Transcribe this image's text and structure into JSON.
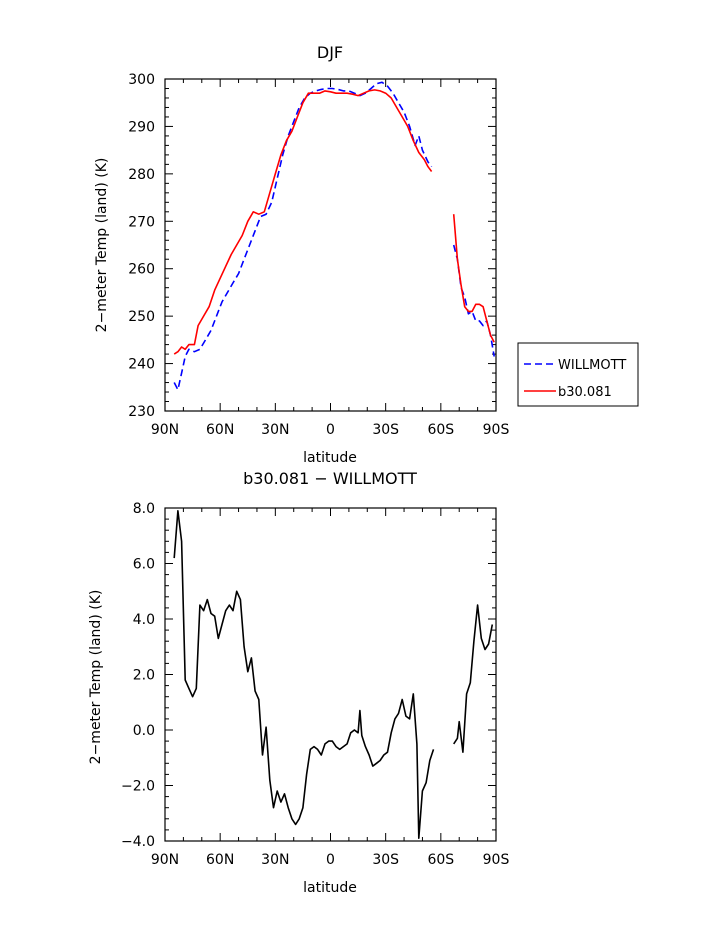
{
  "chart_data": [
    {
      "type": "line",
      "title": "DJF",
      "xlabel": "latitude",
      "ylabel": "2−meter Temp (land) (K)",
      "x_ticks": [
        "90N",
        "60N",
        "30N",
        "0",
        "30S",
        "60S",
        "90S"
      ],
      "y_ticks": [
        "230",
        "240",
        "250",
        "260",
        "270",
        "280",
        "290",
        "300"
      ],
      "xlim": [
        90,
        -90
      ],
      "ylim": [
        230,
        300
      ],
      "legend_position": "right-bottom-outside",
      "series": [
        {
          "name": "WILLMOTT",
          "color": "#0000ff",
          "dash": "dashed",
          "segments": [
            [
              [
                85,
                236
              ],
              [
                83,
                234.5
              ],
              [
                81,
                238
              ],
              [
                79,
                241.5
              ],
              [
                77,
                243
              ],
              [
                74,
                242.5
              ],
              [
                71,
                243
              ],
              [
                68,
                245
              ],
              [
                65,
                247
              ],
              [
                62,
                250
              ],
              [
                59,
                253
              ],
              [
                56,
                255
              ],
              [
                53,
                257
              ],
              [
                50,
                259
              ],
              [
                47,
                262
              ],
              [
                44,
                265
              ],
              [
                41,
                268
              ],
              [
                38,
                271
              ],
              [
                35,
                271.5
              ],
              [
                32,
                274
              ],
              [
                29,
                279
              ],
              [
                26,
                284
              ],
              [
                23,
                288
              ],
              [
                20,
                291
              ],
              [
                17,
                294
              ],
              [
                14,
                296
              ],
              [
                11,
                297
              ],
              [
                8,
                297.5
              ],
              [
                5,
                297.8
              ],
              [
                2,
                298
              ],
              [
                -1,
                298
              ],
              [
                -4,
                297.8
              ],
              [
                -7,
                297.5
              ],
              [
                -10,
                297.5
              ],
              [
                -13,
                297
              ],
              [
                -16,
                296.5
              ],
              [
                -19,
                297
              ],
              [
                -22,
                298
              ],
              [
                -25,
                299
              ],
              [
                -28,
                299.3
              ],
              [
                -31,
                298.5
              ],
              [
                -34,
                297
              ],
              [
                -37,
                295
              ],
              [
                -40,
                293
              ],
              [
                -43,
                290
              ],
              [
                -46,
                286
              ],
              [
                -48,
                288
              ],
              [
                -50,
                285
              ],
              [
                -53,
                282.5
              ],
              [
                -55,
                281.5
              ]
            ],
            [
              [
                -67,
                265
              ],
              [
                -69,
                262
              ],
              [
                -71,
                256
              ],
              [
                -73,
                254
              ],
              [
                -75,
                250.5
              ],
              [
                -77,
                251
              ],
              [
                -79,
                249
              ],
              [
                -81,
                249
              ],
              [
                -83,
                248
              ],
              [
                -85,
                249
              ],
              [
                -87,
                246
              ],
              [
                -89,
                241.5
              ]
            ]
          ]
        },
        {
          "name": "b30.081",
          "color": "#ff0000",
          "dash": "solid",
          "segments": [
            [
              [
                85,
                242
              ],
              [
                83,
                242.5
              ],
              [
                81,
                243.5
              ],
              [
                79,
                243
              ],
              [
                77,
                244
              ],
              [
                74,
                244
              ],
              [
                72,
                248
              ],
              [
                69,
                250
              ],
              [
                66,
                252
              ],
              [
                63,
                255.5
              ],
              [
                60,
                258
              ],
              [
                57,
                260.5
              ],
              [
                54,
                263
              ],
              [
                51,
                265
              ],
              [
                48,
                267
              ],
              [
                45,
                270
              ],
              [
                42,
                272
              ],
              [
                39,
                271.5
              ],
              [
                36,
                272
              ],
              [
                33,
                276
              ],
              [
                30,
                280
              ],
              [
                27,
                284
              ],
              [
                24,
                287
              ],
              [
                21,
                289
              ],
              [
                18,
                292
              ],
              [
                15,
                295
              ],
              [
                12,
                297
              ],
              [
                9,
                297
              ],
              [
                6,
                297
              ],
              [
                3,
                297.5
              ],
              [
                0,
                297.3
              ],
              [
                -3,
                297
              ],
              [
                -6,
                297
              ],
              [
                -9,
                297
              ],
              [
                -12,
                296.8
              ],
              [
                -15,
                296.5
              ],
              [
                -18,
                297
              ],
              [
                -21,
                297.5
              ],
              [
                -24,
                297.7
              ],
              [
                -27,
                297.5
              ],
              [
                -30,
                297
              ],
              [
                -33,
                296
              ],
              [
                -36,
                294
              ],
              [
                -39,
                292
              ],
              [
                -42,
                290
              ],
              [
                -45,
                287
              ],
              [
                -48,
                284.5
              ],
              [
                -51,
                283
              ],
              [
                -53,
                281.5
              ],
              [
                -55,
                280.5
              ]
            ],
            [
              [
                -67,
                271.5
              ],
              [
                -69,
                262
              ],
              [
                -71,
                256.5
              ],
              [
                -73,
                252
              ],
              [
                -75,
                251
              ],
              [
                -77,
                251
              ],
              [
                -79,
                252.5
              ],
              [
                -81,
                252.5
              ],
              [
                -83,
                252
              ],
              [
                -85,
                249
              ],
              [
                -87,
                246
              ],
              [
                -89,
                244.5
              ]
            ]
          ]
        }
      ]
    },
    {
      "type": "line",
      "title": "b30.081 − WILLMOTT",
      "xlabel": "latitude",
      "ylabel": "2−meter Temp (land) (K)",
      "x_ticks": [
        "90N",
        "60N",
        "30N",
        "0",
        "30S",
        "60S",
        "90S"
      ],
      "y_ticks": [
        "−4.0",
        "−2.0",
        "0.0",
        "2.0",
        "4.0",
        "6.0",
        "8.0"
      ],
      "xlim": [
        90,
        -90
      ],
      "ylim": [
        -4,
        8
      ],
      "series": [
        {
          "color": "#000000",
          "dash": "solid",
          "segments": [
            [
              [
                85,
                6.2
              ],
              [
                83,
                7.9
              ],
              [
                81,
                6.8
              ],
              [
                79,
                1.8
              ],
              [
                77,
                1.5
              ],
              [
                75,
                1.2
              ],
              [
                73,
                1.5
              ],
              [
                71,
                4.5
              ],
              [
                69,
                4.3
              ],
              [
                67,
                4.7
              ],
              [
                65,
                4.2
              ],
              [
                63,
                4.1
              ],
              [
                61,
                3.3
              ],
              [
                59,
                3.8
              ],
              [
                57,
                4.3
              ],
              [
                55,
                4.5
              ],
              [
                53,
                4.3
              ],
              [
                51,
                5.0
              ],
              [
                49,
                4.7
              ],
              [
                47,
                3.0
              ],
              [
                45,
                2.1
              ],
              [
                43,
                2.6
              ],
              [
                41,
                1.4
              ],
              [
                39,
                1.1
              ],
              [
                37,
                -0.9
              ],
              [
                35,
                0.1
              ],
              [
                33,
                -1.8
              ],
              [
                31,
                -2.8
              ],
              [
                29,
                -2.2
              ],
              [
                27,
                -2.6
              ],
              [
                25,
                -2.3
              ],
              [
                23,
                -2.8
              ],
              [
                21,
                -3.2
              ],
              [
                19,
                -3.4
              ],
              [
                17,
                -3.2
              ],
              [
                15,
                -2.8
              ],
              [
                13,
                -1.6
              ],
              [
                11,
                -0.7
              ],
              [
                9,
                -0.6
              ],
              [
                7,
                -0.7
              ],
              [
                5,
                -0.9
              ],
              [
                3,
                -0.5
              ],
              [
                1,
                -0.4
              ],
              [
                -1,
                -0.4
              ],
              [
                -3,
                -0.6
              ],
              [
                -5,
                -0.7
              ],
              [
                -7,
                -0.6
              ],
              [
                -9,
                -0.5
              ],
              [
                -11,
                -0.1
              ],
              [
                -13,
                0.0
              ],
              [
                -15,
                -0.1
              ],
              [
                -16,
                0.7
              ],
              [
                -17,
                -0.2
              ],
              [
                -19,
                -0.6
              ],
              [
                -21,
                -0.9
              ],
              [
                -23,
                -1.3
              ],
              [
                -25,
                -1.2
              ],
              [
                -27,
                -1.1
              ],
              [
                -29,
                -0.9
              ],
              [
                -31,
                -0.8
              ],
              [
                -33,
                -0.1
              ],
              [
                -35,
                0.4
              ],
              [
                -37,
                0.6
              ],
              [
                -39,
                1.1
              ],
              [
                -41,
                0.5
              ],
              [
                -43,
                0.4
              ],
              [
                -45,
                1.3
              ],
              [
                -47,
                -0.5
              ],
              [
                -48,
                -3.9
              ],
              [
                -50,
                -2.2
              ],
              [
                -52,
                -1.9
              ],
              [
                -54,
                -1.1
              ],
              [
                -56,
                -0.7
              ]
            ],
            [
              [
                -67,
                -0.5
              ],
              [
                -69,
                -0.3
              ],
              [
                -70,
                0.3
              ],
              [
                -72,
                -0.8
              ],
              [
                -74,
                1.3
              ],
              [
                -76,
                1.7
              ],
              [
                -78,
                3.2
              ],
              [
                -80,
                4.5
              ],
              [
                -82,
                3.3
              ],
              [
                -84,
                2.9
              ],
              [
                -86,
                3.1
              ],
              [
                -88,
                3.8
              ]
            ]
          ]
        }
      ]
    }
  ]
}
